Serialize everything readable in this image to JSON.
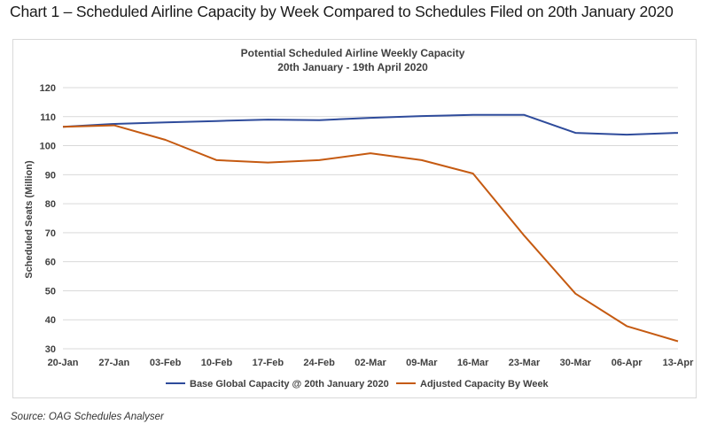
{
  "heading": "Chart 1 – Scheduled Airline Capacity by Week Compared to Schedules Filed on 20th January 2020",
  "source": "Source: OAG Schedules Analyser",
  "colors": {
    "base": "#2E4B9B",
    "adjusted": "#C55A11",
    "grid": "#d9d9d9"
  },
  "chart_data": {
    "type": "line",
    "title": "Potential Scheduled Airline Weekly Capacity",
    "subtitle": "20th January - 19th April 2020",
    "ylabel": "Scheduled Seats (Million)",
    "xlabel": "",
    "ylim": [
      30,
      120
    ],
    "yticks": [
      30,
      40,
      50,
      60,
      70,
      80,
      90,
      100,
      110,
      120
    ],
    "grid": true,
    "legend_position": "bottom",
    "categories": [
      "20-Jan",
      "27-Jan",
      "03-Feb",
      "10-Feb",
      "17-Feb",
      "24-Feb",
      "02-Mar",
      "09-Mar",
      "16-Mar",
      "23-Mar",
      "30-Mar",
      "06-Apr",
      "13-Apr"
    ],
    "series": [
      {
        "name": "Base Global Capacity @ 20th January 2020",
        "color": "#2E4B9B",
        "values": [
          106.5,
          107.5,
          108,
          108.5,
          109,
          108.8,
          109.6,
          110.2,
          110.6,
          110.6,
          104.4,
          103.8,
          104.4
        ]
      },
      {
        "name": "Adjusted Capacity By Week",
        "color": "#C55A11",
        "values": [
          106.5,
          107,
          102,
          95,
          94.2,
          95,
          97.4,
          95,
          90.4,
          69,
          49,
          37.8,
          32.6
        ]
      }
    ]
  }
}
